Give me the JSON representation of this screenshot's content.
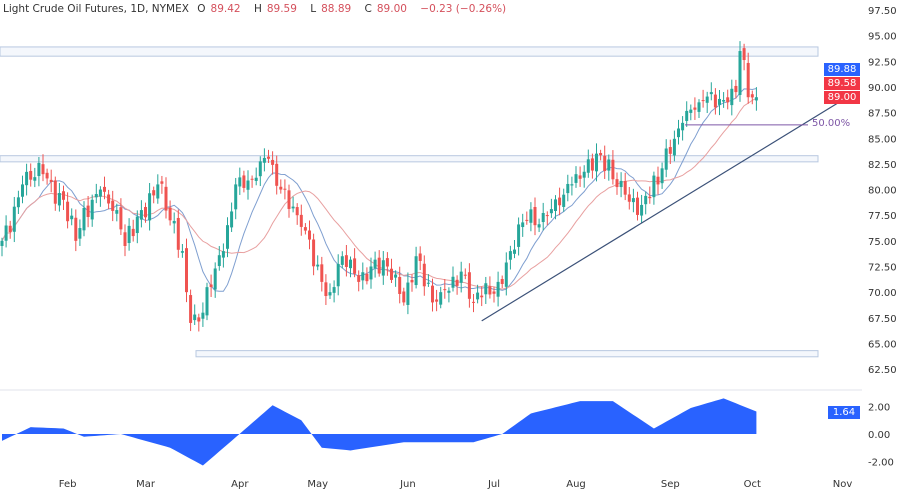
{
  "header": {
    "symbol": "Light Crude Oil Futures, 1D, NYMEX",
    "o_label": "O",
    "o": "89.42",
    "h_label": "H",
    "h": "89.59",
    "l_label": "L",
    "l": "88.89",
    "c_label": "C",
    "c": "89.00",
    "change": "−0.23 (−0.26%)"
  },
  "labels": {
    "ma_fast": "89.88",
    "ma_slow": "89.58",
    "last_price": "89.00",
    "indicator_value": "1.64",
    "fib_level": "50.00%"
  },
  "colors": {
    "up": "#26a69a",
    "down": "#ef5350",
    "ma_fast": "#7f9fd0",
    "ma_slow": "#e8a0a0",
    "trend": "#3b5178",
    "fib": "#7e57a6",
    "zone": "#b8c8e0",
    "indicator": "#2962ff",
    "tag_blue": "#2962ff",
    "tag_red": "#f23645"
  },
  "chart_data": {
    "type": "candlestick",
    "title": "Light Crude Oil Futures, 1D, NYMEX",
    "y_ticks": [
      "97.50",
      "95.00",
      "92.50",
      "90.00",
      "87.50",
      "85.00",
      "82.50",
      "80.00",
      "77.50",
      "75.00",
      "72.50",
      "70.00",
      "67.50",
      "65.00",
      "62.50"
    ],
    "ylim": [
      61.5,
      98.5
    ],
    "x_ticks": [
      {
        "label": "Feb",
        "day": 16
      },
      {
        "label": "Mar",
        "day": 35
      },
      {
        "label": "Apr",
        "day": 58
      },
      {
        "label": "May",
        "day": 77
      },
      {
        "label": "Jun",
        "day": 99
      },
      {
        "label": "Jul",
        "day": 120
      },
      {
        "label": "Aug",
        "day": 140
      },
      {
        "label": "Sep",
        "day": 163
      },
      {
        "label": "Oct",
        "day": 183
      },
      {
        "label": "Nov",
        "day": 205
      }
    ],
    "close_keypoints": [
      [
        0,
        75
      ],
      [
        5,
        80.5
      ],
      [
        10,
        81.5
      ],
      [
        15,
        79
      ],
      [
        18,
        75
      ],
      [
        22,
        79
      ],
      [
        24,
        80
      ],
      [
        28,
        78
      ],
      [
        30,
        74.5
      ],
      [
        34,
        78
      ],
      [
        38,
        80.5
      ],
      [
        41,
        77
      ],
      [
        44,
        74
      ],
      [
        45,
        70
      ],
      [
        46,
        67
      ],
      [
        49,
        68
      ],
      [
        51,
        70.5
      ],
      [
        54,
        74
      ],
      [
        57,
        80.5
      ],
      [
        61,
        81
      ],
      [
        65,
        83
      ],
      [
        68,
        80
      ],
      [
        72,
        77.5
      ],
      [
        74,
        76
      ],
      [
        78,
        71
      ],
      [
        80,
        70
      ],
      [
        83,
        73.5
      ],
      [
        87,
        71
      ],
      [
        90,
        72.5
      ],
      [
        94,
        72.5
      ],
      [
        98,
        69
      ],
      [
        101,
        73.5
      ],
      [
        105,
        69
      ],
      [
        107,
        70
      ],
      [
        110,
        71.5
      ],
      [
        112,
        72
      ],
      [
        115,
        69
      ],
      [
        117,
        69.5
      ],
      [
        121,
        71
      ],
      [
        124,
        74
      ],
      [
        128,
        77
      ],
      [
        133,
        77.5
      ],
      [
        137,
        79.5
      ],
      [
        140,
        81.5
      ],
      [
        145,
        83.5
      ],
      [
        149,
        81
      ],
      [
        152,
        79.5
      ],
      [
        156,
        78.5
      ],
      [
        160,
        80.5
      ],
      [
        162,
        84
      ],
      [
        166,
        86.5
      ],
      [
        170,
        88.5
      ],
      [
        173,
        89.5
      ],
      [
        177,
        88.5
      ],
      [
        179,
        89.5
      ],
      [
        180,
        93.5
      ],
      [
        182,
        89
      ],
      [
        184,
        89
      ]
    ],
    "zones": [
      [
        93.0,
        93.9
      ],
      [
        82.7,
        83.3
      ],
      [
        63.7,
        64.3
      ]
    ],
    "trendline": [
      [
        117,
        67.2
      ],
      [
        207,
        89.2
      ]
    ],
    "fib_50": 86.3,
    "indicator": {
      "y_ticks": [
        "2.00",
        "0.00",
        "-2.00"
      ],
      "ylim": [
        -3.2,
        3.4
      ],
      "keypoints": [
        [
          0,
          -0.5
        ],
        [
          7,
          0.5
        ],
        [
          15,
          0.4
        ],
        [
          20,
          -0.2
        ],
        [
          29,
          0
        ],
        [
          41,
          -1
        ],
        [
          49,
          -2.3
        ],
        [
          56,
          -0.5
        ],
        [
          66,
          2.1
        ],
        [
          73,
          1
        ],
        [
          78,
          -1
        ],
        [
          85,
          -1.2
        ],
        [
          98,
          -0.6
        ],
        [
          115,
          -0.6
        ],
        [
          122,
          0
        ],
        [
          129,
          1.5
        ],
        [
          141,
          2.4
        ],
        [
          149,
          2.4
        ],
        [
          159,
          0.4
        ],
        [
          168,
          1.9
        ],
        [
          176,
          2.6
        ],
        [
          184,
          1.64
        ]
      ]
    }
  }
}
